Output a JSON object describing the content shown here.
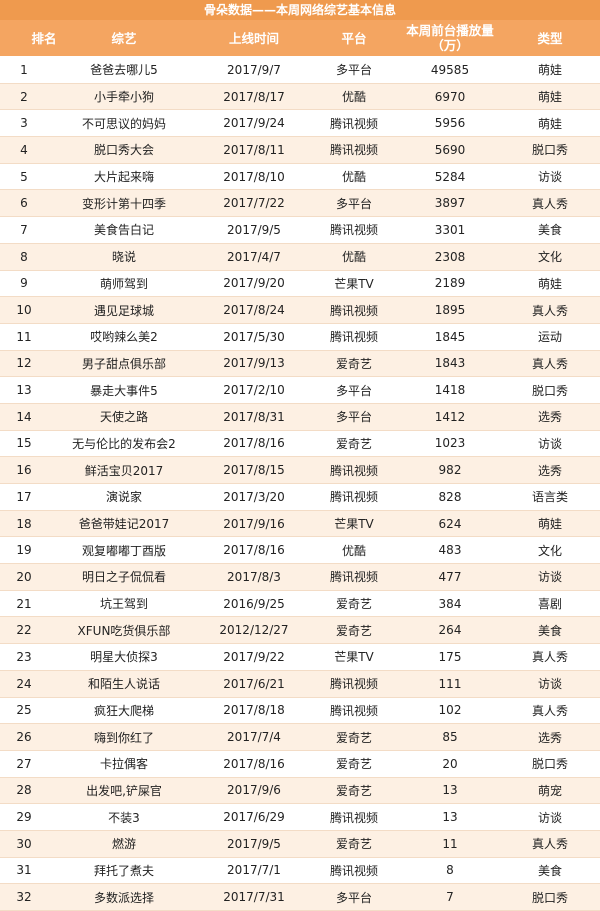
{
  "header": {
    "title": "骨朵数据——本周网络综艺基本信息"
  },
  "table": {
    "columns": [
      "排名",
      "综艺",
      "上线时间",
      "平台",
      "本周前台播放量（万）",
      "类型"
    ],
    "rows": [
      [
        1,
        "爸爸去哪儿5",
        "2017/9/7",
        "多平台",
        49585,
        "萌娃"
      ],
      [
        2,
        "小手牵小狗",
        "2017/8/17",
        "优酷",
        6970,
        "萌娃"
      ],
      [
        3,
        "不可思议的妈妈",
        "2017/9/24",
        "腾讯视频",
        5956,
        "萌娃"
      ],
      [
        4,
        "脱口秀大会",
        "2017/8/11",
        "腾讯视频",
        5690,
        "脱口秀"
      ],
      [
        5,
        "大片起来嗨",
        "2017/8/10",
        "优酷",
        5284,
        "访谈"
      ],
      [
        6,
        "变形计第十四季",
        "2017/7/22",
        "多平台",
        3897,
        "真人秀"
      ],
      [
        7,
        "美食告白记",
        "2017/9/5",
        "腾讯视频",
        3301,
        "美食"
      ],
      [
        8,
        "晓说",
        "2017/4/7",
        "优酷",
        2308,
        "文化"
      ],
      [
        9,
        "萌师驾到",
        "2017/9/20",
        "芒果TV",
        2189,
        "萌娃"
      ],
      [
        10,
        "遇见足球城",
        "2017/8/24",
        "腾讯视频",
        1895,
        "真人秀"
      ],
      [
        11,
        "哎哟辣么美2",
        "2017/5/30",
        "腾讯视频",
        1845,
        "运动"
      ],
      [
        12,
        "男子甜点俱乐部",
        "2017/9/13",
        "爱奇艺",
        1843,
        "真人秀"
      ],
      [
        13,
        "暴走大事件5",
        "2017/2/10",
        "多平台",
        1418,
        "脱口秀"
      ],
      [
        14,
        "天使之路",
        "2017/8/31",
        "多平台",
        1412,
        "选秀"
      ],
      [
        15,
        "无与伦比的发布会2",
        "2017/8/16",
        "爱奇艺",
        1023,
        "访谈"
      ],
      [
        16,
        "鲜活宝贝2017",
        "2017/8/15",
        "腾讯视频",
        982,
        "选秀"
      ],
      [
        17,
        "演说家",
        "2017/3/20",
        "腾讯视频",
        828,
        "语言类"
      ],
      [
        18,
        "爸爸带娃记2017",
        "2017/9/16",
        "芒果TV",
        624,
        "萌娃"
      ],
      [
        19,
        "观复嘟嘟丁酉版",
        "2017/8/16",
        "优酷",
        483,
        "文化"
      ],
      [
        20,
        "明日之子侃侃看",
        "2017/8/3",
        "腾讯视频",
        477,
        "访谈"
      ],
      [
        21,
        "坑王驾到",
        "2016/9/25",
        "爱奇艺",
        384,
        "喜剧"
      ],
      [
        22,
        "XFUN吃货俱乐部",
        "2012/12/27",
        "爱奇艺",
        264,
        "美食"
      ],
      [
        23,
        "明星大侦探3",
        "2017/9/22",
        "芒果TV",
        175,
        "真人秀"
      ],
      [
        24,
        "和陌生人说话",
        "2017/6/21",
        "腾讯视频",
        111,
        "访谈"
      ],
      [
        25,
        "疯狂大爬梯",
        "2017/8/18",
        "腾讯视频",
        102,
        "真人秀"
      ],
      [
        26,
        "嗨到你红了",
        "2017/7/4",
        "爱奇艺",
        85,
        "选秀"
      ],
      [
        27,
        "卡拉偶客",
        "2017/8/16",
        "爱奇艺",
        20,
        "脱口秀"
      ],
      [
        28,
        "出发吧,铲屎官",
        "2017/9/6",
        "爱奇艺",
        13,
        "萌宠"
      ],
      [
        29,
        "不装3",
        "2017/6/29",
        "腾讯视频",
        13,
        "访谈"
      ],
      [
        30,
        "燃游",
        "2017/9/5",
        "爱奇艺",
        11,
        "真人秀"
      ],
      [
        31,
        "拜托了煮夫",
        "2017/7/1",
        "腾讯视频",
        8,
        "美食"
      ],
      [
        32,
        "多数派选择",
        "2017/7/31",
        "多平台",
        7,
        "脱口秀"
      ]
    ]
  }
}
